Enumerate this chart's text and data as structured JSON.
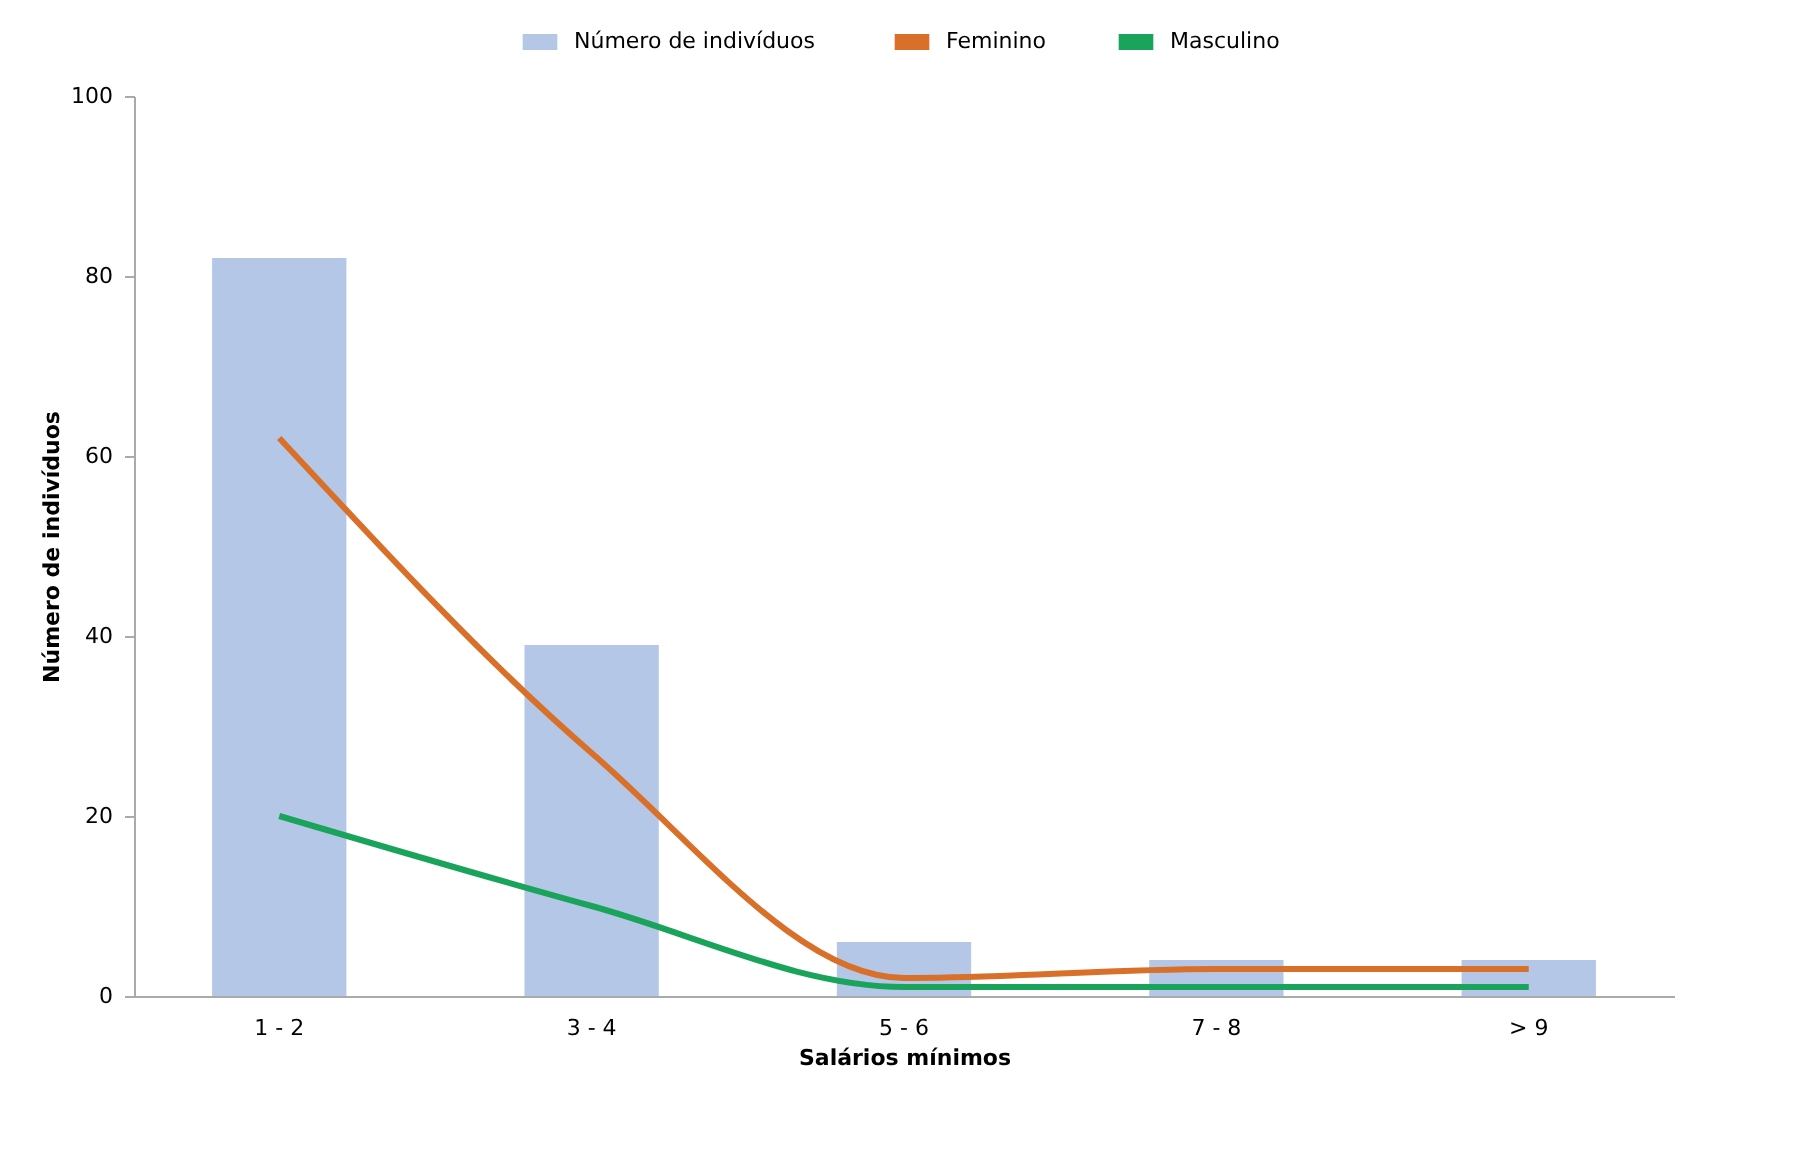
{
  "chart_data": {
    "type": "bar",
    "xlabel": "Salários mínimos",
    "ylabel": "Número de indivíduos",
    "categories": [
      "1 - 2",
      "3 - 4",
      "5 - 6",
      "7 - 8",
      "> 9"
    ],
    "series": [
      {
        "name": "Número  de indivíduos",
        "color": "#b4c7e7",
        "values": [
          82,
          39,
          6,
          4,
          4
        ]
      },
      {
        "name": "Feminino",
        "type": "line",
        "color": "#d8702a",
        "values": [
          62,
          27,
          2,
          3,
          3
        ]
      },
      {
        "name": "Masculino",
        "type": "line",
        "color": "#1aa35a",
        "values": [
          20,
          10,
          1,
          1,
          1
        ]
      }
    ],
    "ylim": [
      0,
      100
    ],
    "yticks": [
      0,
      20,
      40,
      60,
      80,
      100
    ],
    "grid": false,
    "legend": "top",
    "marker": "none",
    "line_style": "solid"
  }
}
